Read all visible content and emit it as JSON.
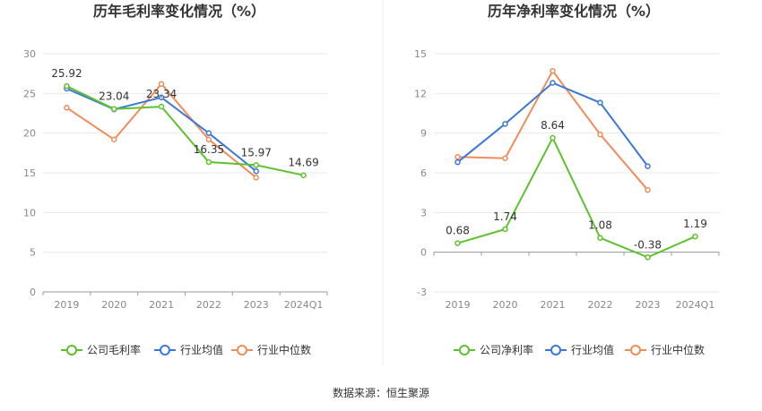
{
  "source": {
    "prefix": "数据来源：",
    "name": "恒生聚源"
  },
  "chart_data": [
    {
      "type": "line",
      "title": "历年毛利率变化情况（%）",
      "categories": [
        "2019",
        "2020",
        "2021",
        "2022",
        "2023",
        "2024Q1"
      ],
      "ylim": [
        0,
        30
      ],
      "yticks": [
        0,
        5,
        10,
        15,
        20,
        25,
        30
      ],
      "grid": true,
      "legend_position": "bottom-center",
      "series": [
        {
          "name": "公司毛利率",
          "color": "#5cc22e",
          "values": [
            25.92,
            23.04,
            23.34,
            16.35,
            15.97,
            14.69
          ],
          "labels": [
            "25.92",
            "23.04",
            "23.34",
            "16.35",
            "15.97",
            "14.69"
          ]
        },
        {
          "name": "行业均值",
          "color": "#3c78d8",
          "values": [
            25.6,
            23.0,
            24.5,
            20.0,
            15.2,
            null
          ]
        },
        {
          "name": "行业中位数",
          "color": "#f08c5a",
          "values": [
            23.2,
            19.2,
            26.2,
            19.2,
            14.4,
            null
          ]
        }
      ]
    },
    {
      "type": "line",
      "title": "历年净利率变化情况（%）",
      "categories": [
        "2019",
        "2020",
        "2021",
        "2022",
        "2023",
        "2024Q1"
      ],
      "ylim": [
        -3,
        15
      ],
      "yticks": [
        -3,
        0,
        3,
        6,
        9,
        12,
        15
      ],
      "grid": true,
      "legend_position": "bottom-center",
      "series": [
        {
          "name": "公司净利率",
          "color": "#5cc22e",
          "values": [
            0.68,
            1.74,
            8.64,
            1.08,
            -0.38,
            1.19
          ],
          "labels": [
            "0.68",
            "1.74",
            "8.64",
            "1.08",
            "-0.38",
            "1.19"
          ]
        },
        {
          "name": "行业均值",
          "color": "#3c78d8",
          "values": [
            6.8,
            9.7,
            12.8,
            11.3,
            6.5,
            null
          ]
        },
        {
          "name": "行业中位数",
          "color": "#f08c5a",
          "values": [
            7.2,
            7.1,
            13.7,
            8.9,
            4.7,
            null
          ]
        }
      ]
    }
  ]
}
